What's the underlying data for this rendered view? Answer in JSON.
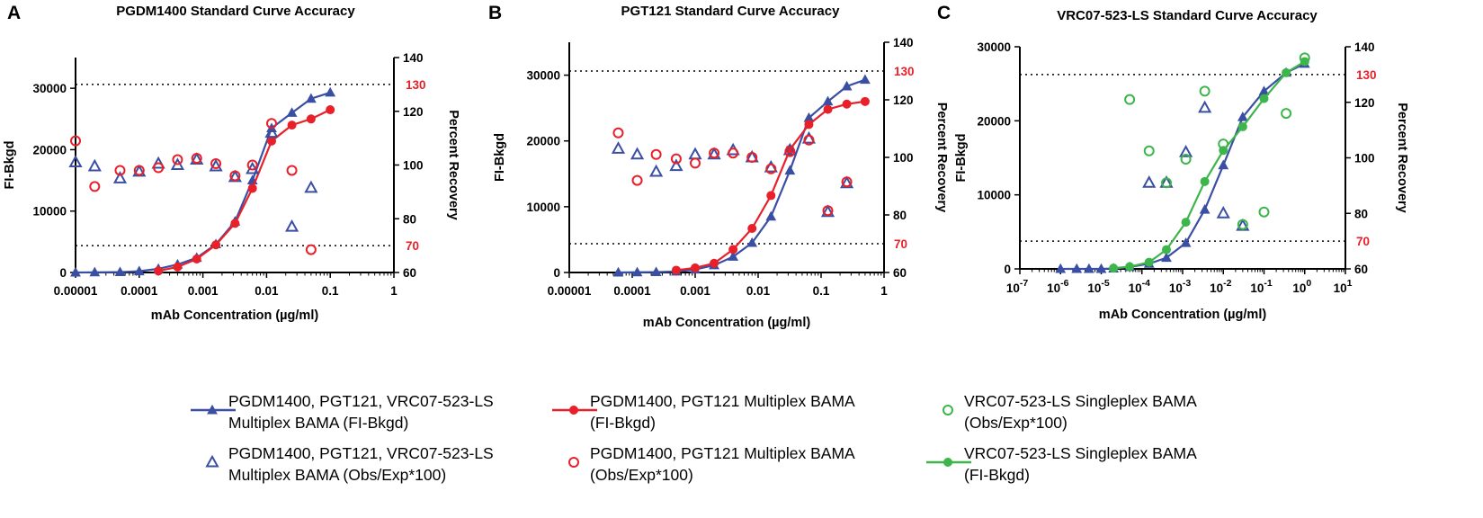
{
  "colors": {
    "blue": "#3a4fa3",
    "red": "#e8202a",
    "green": "#3cb54a",
    "axis": "#000000",
    "refline": "#000000",
    "reflabel": "#e8202a"
  },
  "legend": [
    {
      "series": "multiplex_fi",
      "marker": "filled-triangle-line",
      "color": "#3a4fa3",
      "lines": [
        "PGDM1400, PGT121, VRC07-523-LS",
        "Multiplex BAMA (FI-Bkgd)"
      ]
    },
    {
      "series": "multiplex_rec",
      "marker": "open-triangle",
      "color": "#3a4fa3",
      "lines": [
        "PGDM1400, PGT121, VRC07-523-LS",
        "Multiplex BAMA (Obs/Exp*100)"
      ]
    },
    {
      "series": "pg_fi",
      "marker": "filled-circle-line",
      "color": "#e8202a",
      "lines": [
        "PGDM1400, PGT121 Multiplex BAMA",
        "(FI-Bkgd)"
      ]
    },
    {
      "series": "pg_rec",
      "marker": "open-circle",
      "color": "#e8202a",
      "lines": [
        "PGDM1400, PGT121 Multiplex BAMA",
        "(Obs/Exp*100)"
      ]
    },
    {
      "series": "single_rec",
      "marker": "open-circle",
      "color": "#3cb54a",
      "lines": [
        "VRC07-523-LS Singleplex BAMA",
        "(Obs/Exp*100)"
      ]
    },
    {
      "series": "single_fi",
      "marker": "filled-circle-line",
      "color": "#3cb54a",
      "lines": [
        "VRC07-523-LS Singleplex BAMA",
        "(FI-Bkgd)"
      ]
    }
  ],
  "chart_data": [
    {
      "panel_label": "A",
      "type": "line",
      "title": "PGDM1400 Standard Curve Accuracy",
      "xlabel": "mAb Concentration (µg/ml)",
      "ylabel": "FI-Bkgd",
      "y2label": "Percent Recovery",
      "xscale": "log",
      "xlim": [
        1e-05,
        1
      ],
      "x_ticks": [
        1e-05,
        0.0001,
        0.001,
        0.01,
        0.1,
        1
      ],
      "x_tick_labels": [
        "0.00001",
        "0.0001",
        "0.001",
        "0.01",
        "0.1",
        "1"
      ],
      "ylim": [
        0,
        35000
      ],
      "y_ticks": [
        0,
        10000,
        20000,
        30000
      ],
      "y_tick_labels": [
        "0",
        "10000",
        "20000",
        "30000"
      ],
      "y2lim": [
        60,
        140
      ],
      "y2_ticks": [
        60,
        80,
        100,
        120,
        140
      ],
      "y2_tick_labels": [
        "60",
        "80",
        "100",
        "120",
        "140"
      ],
      "reference_lines": [
        {
          "y2": 130,
          "label": "130"
        },
        {
          "y2": 70,
          "label": "70"
        }
      ],
      "series": [
        {
          "key": "multiplex_fi",
          "axis": "left",
          "style": "filled-triangle-line",
          "color": "#3a4fa3",
          "x": [
            1e-05,
            2e-05,
            5e-05,
            0.0001,
            0.0002,
            0.0004,
            0.0008,
            0.0016,
            0.0032,
            0.006,
            0.012,
            0.025,
            0.05,
            0.1
          ],
          "y": [
            0,
            30,
            60,
            200,
            600,
            1300,
            2400,
            4600,
            8300,
            15000,
            23500,
            26000,
            28300,
            29300
          ]
        },
        {
          "key": "pg_fi",
          "axis": "left",
          "style": "filled-circle-line",
          "color": "#e8202a",
          "x": [
            0.0002,
            0.0004,
            0.0008,
            0.0016,
            0.0032,
            0.006,
            0.012,
            0.025,
            0.05,
            0.1
          ],
          "y": [
            250,
            900,
            2200,
            4500,
            8000,
            13700,
            21400,
            24000,
            25000,
            26500
          ]
        },
        {
          "key": "multiplex_rec",
          "axis": "right",
          "style": "open-triangle",
          "color": "#3a4fa3",
          "x": [
            1e-05,
            2e-05,
            5e-05,
            0.0001,
            0.0002,
            0.0004,
            0.0008,
            0.0016,
            0.0032,
            0.006,
            0.012,
            0.025,
            0.05
          ],
          "y": [
            101,
            99.5,
            95,
            97.5,
            100.5,
            100,
            102,
            99.5,
            95.5,
            98.5,
            112,
            77,
            91.5
          ]
        },
        {
          "key": "pg_rec",
          "axis": "right",
          "style": "open-circle",
          "color": "#e8202a",
          "x": [
            1e-05,
            2e-05,
            5e-05,
            0.0001,
            0.0002,
            0.0004,
            0.0008,
            0.0016,
            0.0032,
            0.006,
            0.012,
            0.025,
            0.05
          ],
          "y": [
            109,
            92,
            98,
            98,
            99,
            102,
            102.5,
            100.5,
            96,
            100,
            115.5,
            98,
            68.5
          ]
        }
      ]
    },
    {
      "panel_label": "B",
      "type": "line",
      "title": "PGT121 Standard Curve Accuracy",
      "xlabel": "mAb Concentration (µg/ml)",
      "ylabel": "FI-Bkgd",
      "y2label": "Percent Recovery",
      "xscale": "log",
      "xlim": [
        1e-05,
        1
      ],
      "x_ticks": [
        1e-05,
        0.0001,
        0.001,
        0.01,
        0.1,
        1
      ],
      "x_tick_labels": [
        "0.00001",
        "0.0001",
        "0.001",
        "0.01",
        "0.1",
        "1"
      ],
      "ylim": [
        0,
        35000
      ],
      "y_ticks": [
        0,
        10000,
        20000,
        30000
      ],
      "y_tick_labels": [
        "0",
        "10000",
        "20000",
        "30000"
      ],
      "y2lim": [
        60,
        140
      ],
      "y2_ticks": [
        60,
        80,
        100,
        120,
        140
      ],
      "y2_tick_labels": [
        "60",
        "80",
        "100",
        "120",
        "140"
      ],
      "reference_lines": [
        {
          "y2": 130,
          "label": "130"
        },
        {
          "y2": 70,
          "label": "70"
        }
      ],
      "series": [
        {
          "key": "multiplex_fi",
          "axis": "left",
          "style": "filled-triangle-line",
          "color": "#3a4fa3",
          "x": [
            6e-05,
            0.00012,
            0.00024,
            0.0005,
            0.001,
            0.002,
            0.004,
            0.008,
            0.016,
            0.032,
            0.064,
            0.128,
            0.256,
            0.5
          ],
          "y": [
            0,
            30,
            60,
            150,
            450,
            1100,
            2400,
            4500,
            8500,
            15500,
            23500,
            26000,
            28300,
            29300
          ]
        },
        {
          "key": "pg_fi",
          "axis": "left",
          "style": "filled-circle-line",
          "color": "#e8202a",
          "x": [
            0.0005,
            0.001,
            0.002,
            0.004,
            0.008,
            0.016,
            0.032,
            0.064,
            0.128,
            0.256,
            0.5
          ],
          "y": [
            350,
            700,
            1400,
            3500,
            6700,
            11700,
            18700,
            22500,
            24800,
            25600,
            26000
          ]
        },
        {
          "key": "multiplex_rec",
          "axis": "right",
          "style": "open-triangle",
          "color": "#3a4fa3",
          "x": [
            6e-05,
            0.00012,
            0.00024,
            0.0005,
            0.001,
            0.002,
            0.004,
            0.008,
            0.016,
            0.032,
            0.064,
            0.128,
            0.256
          ],
          "y": [
            103,
            101,
            95,
            97,
            101,
            101,
            102.5,
            100,
            96.5,
            102.5,
            106.5,
            81,
            91
          ]
        },
        {
          "key": "pg_rec",
          "axis": "right",
          "style": "open-circle",
          "color": "#e8202a",
          "x": [
            6e-05,
            0.00012,
            0.00024,
            0.0005,
            0.001,
            0.002,
            0.004,
            0.008,
            0.016,
            0.032,
            0.064,
            0.128,
            0.256
          ],
          "y": [
            108.5,
            92,
            101,
            99.5,
            98,
            101.5,
            101.5,
            100,
            96,
            102,
            106,
            81.5,
            91.5
          ]
        }
      ]
    },
    {
      "panel_label": "C",
      "type": "line",
      "title": "VRC07-523-LS Standard Curve Accuracy",
      "xlabel": "mAb Concentration (µg/ml)",
      "ylabel": "FI-Bkgd",
      "y2label": "Percent Recovery",
      "xscale": "log",
      "xlim": [
        1e-07,
        10
      ],
      "x_ticks": [
        1e-07,
        1e-06,
        1e-05,
        0.0001,
        0.001,
        0.01,
        0.1,
        1,
        10
      ],
      "x_tick_labels": [
        [
          "10",
          "-7"
        ],
        [
          "10",
          "-6"
        ],
        [
          "10",
          "-5"
        ],
        [
          "10",
          "-4"
        ],
        [
          "10",
          "-3"
        ],
        [
          "10",
          "-2"
        ],
        [
          "10",
          "-1"
        ],
        [
          "10",
          "0"
        ],
        [
          "10",
          "1"
        ]
      ],
      "ylim": [
        0,
        30000
      ],
      "y_ticks": [
        0,
        10000,
        20000,
        30000
      ],
      "y_tick_labels": [
        "0",
        "10000",
        "20000",
        "30000"
      ],
      "y2lim": [
        60,
        140
      ],
      "y2_ticks": [
        60,
        80,
        100,
        120,
        140
      ],
      "y2_tick_labels": [
        "60",
        "80",
        "100",
        "120",
        "140"
      ],
      "reference_lines": [
        {
          "y2": 130,
          "label": "130"
        },
        {
          "y2": 70,
          "label": "70"
        }
      ],
      "series": [
        {
          "key": "multiplex_fi",
          "axis": "left",
          "style": "filled-triangle-line",
          "color": "#3a4fa3",
          "x": [
            1e-06,
            2.5e-06,
            5e-06,
            1e-05,
            2e-05,
            5e-05,
            0.00015,
            0.0004,
            0.0012,
            0.0035,
            0.01,
            0.03,
            0.1,
            0.35,
            1
          ],
          "y": [
            0,
            0,
            0,
            0,
            50,
            250,
            700,
            1500,
            3500,
            8000,
            14000,
            20500,
            24000,
            26500,
            27700
          ]
        },
        {
          "key": "single_fi",
          "axis": "left",
          "style": "filled-circle-line",
          "color": "#3cb54a",
          "x": [
            2e-05,
            5e-05,
            0.00015,
            0.0004,
            0.0012,
            0.0035,
            0.01,
            0.03,
            0.1,
            0.35,
            1
          ],
          "y": [
            100,
            300,
            900,
            2600,
            6300,
            11800,
            16000,
            19200,
            23000,
            26500,
            28000
          ]
        },
        {
          "key": "multiplex_rec",
          "axis": "right",
          "style": "open-triangle",
          "color": "#3a4fa3",
          "x": [
            0.00015,
            0.0004,
            0.0012,
            0.0035,
            0.01,
            0.03
          ],
          "y": [
            91,
            91,
            102,
            118,
            80,
            75.5
          ]
        },
        {
          "key": "single_rec",
          "axis": "right",
          "style": "open-circle",
          "color": "#3cb54a",
          "x": [
            5e-05,
            0.00015,
            0.0004,
            0.0012,
            0.0035,
            0.01,
            0.03,
            0.1,
            0.35,
            1
          ],
          "y": [
            121,
            102.5,
            91,
            99.5,
            124,
            105,
            76,
            80.5,
            116,
            136
          ]
        }
      ]
    }
  ]
}
